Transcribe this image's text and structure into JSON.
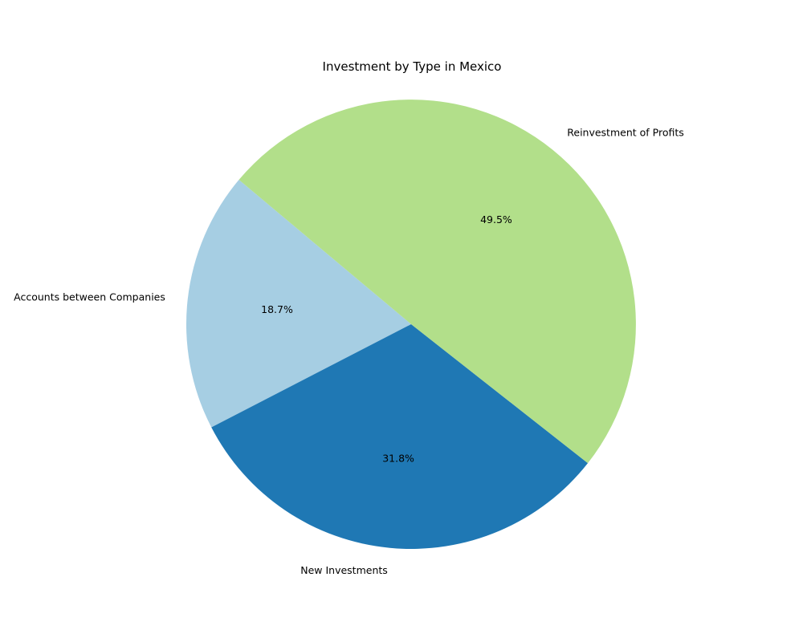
{
  "chart_data": {
    "type": "pie",
    "title": "Investment by Type in Mexico",
    "categories": [
      "Accounts between Companies",
      "New Investments",
      "Reinvestment of Profits"
    ],
    "values": [
      18.7,
      31.8,
      49.5
    ],
    "value_labels": [
      "18.7%",
      "31.8%",
      "49.5%"
    ],
    "colors": [
      "#a6cee3",
      "#1f78b4",
      "#b2df8a"
    ],
    "start_angle_deg": 140,
    "direction": "counterclockwise",
    "legend": "none"
  }
}
